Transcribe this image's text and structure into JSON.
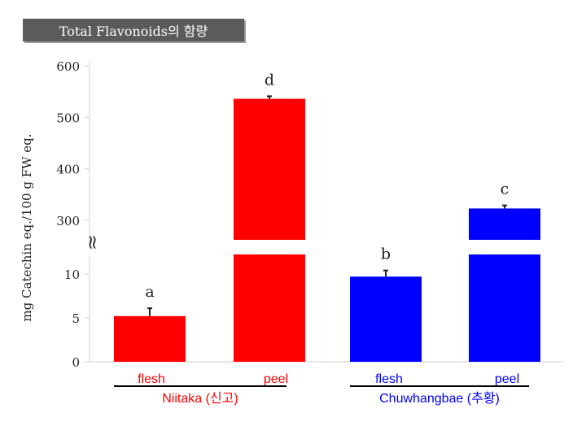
{
  "chart_data": {
    "type": "bar",
    "title": "Total Flavonoids의 함량",
    "ylabel": "mg Catechin eq./100 g FW eq.",
    "axis_break_glyph": "≈",
    "break_range": [
      10,
      300
    ],
    "ylim": [
      0,
      600
    ],
    "y_ticks_lower": [
      0,
      5,
      10
    ],
    "y_ticks_upper": [
      300,
      400,
      500,
      600
    ],
    "categories": [
      "flesh",
      "peel",
      "flesh",
      "peel"
    ],
    "values": [
      5.2,
      536,
      9.7,
      323
    ],
    "errors": [
      0.9,
      5,
      0.7,
      6
    ],
    "significance": [
      "a",
      "d",
      "b",
      "c"
    ],
    "bar_colors": [
      "#ff0000",
      "#ff0000",
      "#0000ff",
      "#0000ff"
    ],
    "groups": [
      {
        "label": "Niitaka (신고)",
        "bars": [
          0,
          1
        ]
      },
      {
        "label": "Chuwhangbae (추황)",
        "bars": [
          2,
          3
        ]
      }
    ]
  }
}
